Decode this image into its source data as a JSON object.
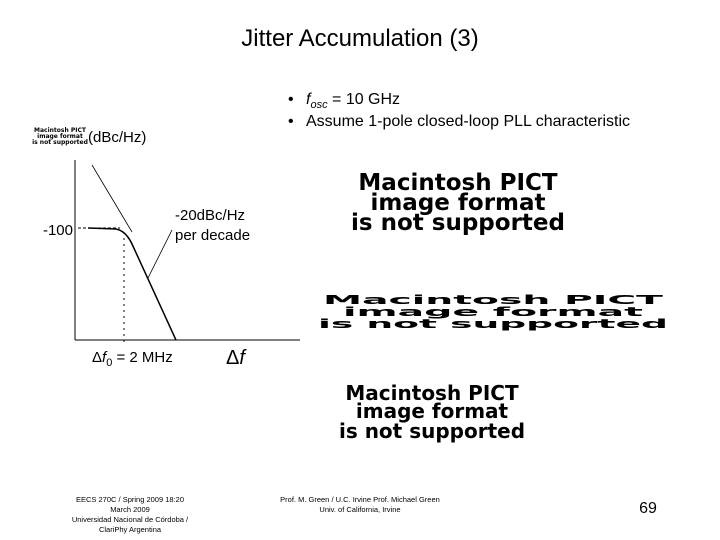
{
  "header": {
    "title": "Jitter Accumulation (3)"
  },
  "bullets": [
    {
      "var": "f",
      "sub": "osc",
      "rest": " = 10 GHz"
    },
    {
      "text": "Assume 1-pole closed-loop PLL characteristic"
    }
  ],
  "plot": {
    "y_unit": "(dBc/Hz)",
    "y_level": "-100",
    "slope_label": [
      "-20dBc/Hz",
      "per decade"
    ],
    "corner": {
      "delta": "Δ",
      "var": "f",
      "sub": "0",
      "rest": " = 2 MHz"
    },
    "x_label": {
      "delta": "Δ",
      "var": "f"
    }
  },
  "placeholders": {
    "small": [
      "Macintosh PICT",
      "image format",
      "is not supported"
    ],
    "large_1": [
      "Macintosh PICT",
      "image format",
      "is not supported"
    ],
    "large_2": [
      "Macintosh PICT",
      "image format",
      "is not supported"
    ],
    "large_3": [
      "Macintosh PICT",
      "image format",
      "is not supported"
    ]
  },
  "footer": {
    "left": [
      "EECS 270C / Spring 2009 18:20",
      "March 2009",
      "Universidad Nacional de Córdoba /",
      "ClariPhy Argentina"
    ],
    "center": [
      "Prof. M. Green / U.C. Irvine Prof. Michael Green",
      "Univ. of California, Irvine"
    ],
    "page": "69"
  }
}
